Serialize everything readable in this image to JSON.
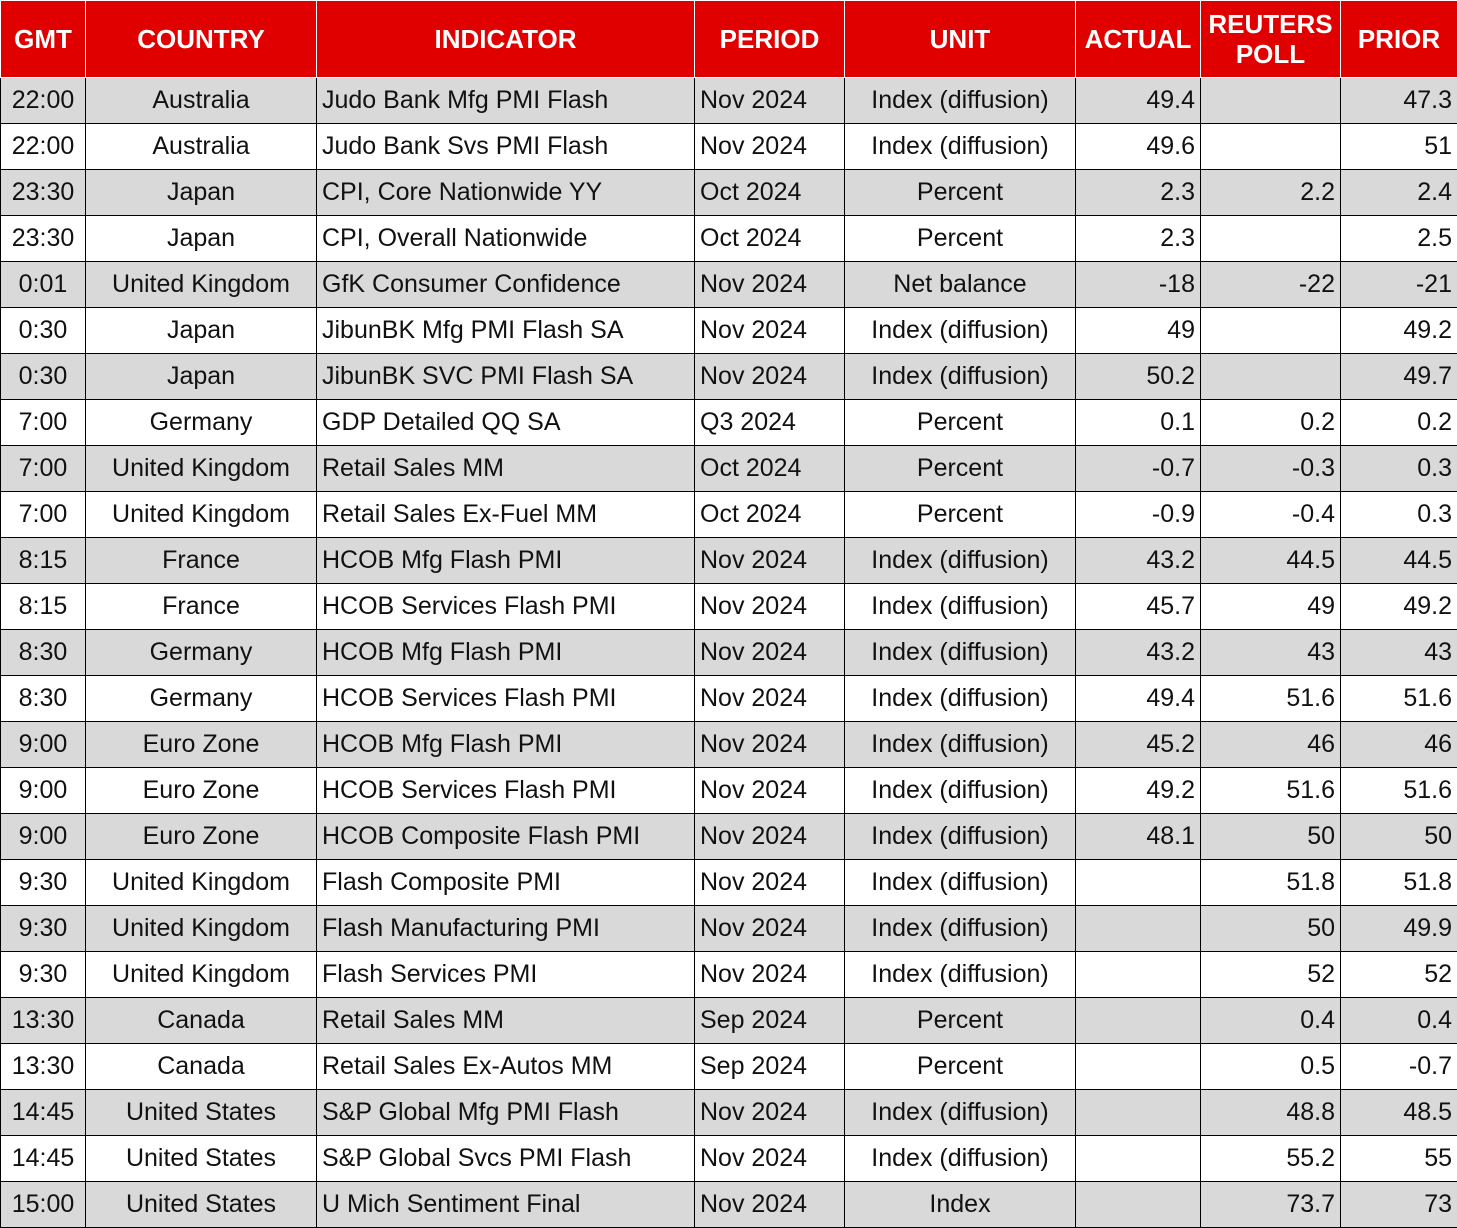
{
  "colors": {
    "header_bg": "#e00000",
    "header_text": "#ffffff",
    "row_alt": "#d9d9d9",
    "row": "#ffffff"
  },
  "headers": {
    "gmt": "GMT",
    "country": "COUNTRY",
    "indicator": "INDICATOR",
    "period": "PERIOD",
    "unit": "UNIT",
    "actual": "ACTUAL",
    "poll": "REUTERS POLL",
    "prior": "PRIOR"
  },
  "rows": [
    [
      "22:00",
      "Australia",
      "Judo Bank Mfg PMI Flash",
      "Nov 2024",
      "Index (diffusion)",
      "49.4",
      "",
      "47.3"
    ],
    [
      "22:00",
      "Australia",
      "Judo Bank Svs PMI Flash",
      "Nov 2024",
      "Index (diffusion)",
      "49.6",
      "",
      "51"
    ],
    [
      "23:30",
      "Japan",
      "CPI, Core Nationwide YY",
      "Oct 2024",
      "Percent",
      "2.3",
      "2.2",
      "2.4"
    ],
    [
      "23:30",
      "Japan",
      "CPI, Overall Nationwide",
      "Oct 2024",
      "Percent",
      "2.3",
      "",
      "2.5"
    ],
    [
      "0:01",
      "United Kingdom",
      "GfK Consumer Confidence",
      "Nov 2024",
      "Net balance",
      "-18",
      "-22",
      "-21"
    ],
    [
      "0:30",
      "Japan",
      "JibunBK Mfg PMI Flash SA",
      "Nov 2024",
      "Index (diffusion)",
      "49",
      "",
      "49.2"
    ],
    [
      "0:30",
      "Japan",
      "JibunBK SVC PMI Flash SA",
      "Nov 2024",
      "Index (diffusion)",
      "50.2",
      "",
      "49.7"
    ],
    [
      "7:00",
      "Germany",
      "GDP Detailed QQ SA",
      "Q3 2024",
      "Percent",
      "0.1",
      "0.2",
      "0.2"
    ],
    [
      "7:00",
      "United Kingdom",
      "Retail Sales MM",
      "Oct 2024",
      "Percent",
      "-0.7",
      "-0.3",
      "0.3"
    ],
    [
      "7:00",
      "United Kingdom",
      "Retail Sales Ex-Fuel MM",
      "Oct 2024",
      "Percent",
      "-0.9",
      "-0.4",
      "0.3"
    ],
    [
      "8:15",
      "France",
      "HCOB Mfg Flash PMI",
      "Nov 2024",
      "Index (diffusion)",
      "43.2",
      "44.5",
      "44.5"
    ],
    [
      "8:15",
      "France",
      "HCOB Services Flash PMI",
      "Nov 2024",
      "Index (diffusion)",
      "45.7",
      "49",
      "49.2"
    ],
    [
      "8:30",
      "Germany",
      "HCOB Mfg Flash PMI",
      "Nov 2024",
      "Index (diffusion)",
      "43.2",
      "43",
      "43"
    ],
    [
      "8:30",
      "Germany",
      "HCOB Services Flash PMI",
      "Nov 2024",
      "Index (diffusion)",
      "49.4",
      "51.6",
      "51.6"
    ],
    [
      "9:00",
      "Euro Zone",
      "HCOB Mfg Flash PMI",
      "Nov 2024",
      "Index (diffusion)",
      "45.2",
      "46",
      "46"
    ],
    [
      "9:00",
      "Euro Zone",
      "HCOB Services Flash PMI",
      "Nov 2024",
      "Index (diffusion)",
      "49.2",
      "51.6",
      "51.6"
    ],
    [
      "9:00",
      "Euro Zone",
      "HCOB Composite Flash PMI",
      "Nov 2024",
      "Index (diffusion)",
      "48.1",
      "50",
      "50"
    ],
    [
      "9:30",
      "United Kingdom",
      "Flash Composite PMI",
      "Nov 2024",
      "Index (diffusion)",
      "",
      "51.8",
      "51.8"
    ],
    [
      "9:30",
      "United Kingdom",
      "Flash Manufacturing PMI",
      "Nov 2024",
      "Index (diffusion)",
      "",
      "50",
      "49.9"
    ],
    [
      "9:30",
      "United Kingdom",
      "Flash Services PMI",
      "Nov 2024",
      "Index (diffusion)",
      "",
      "52",
      "52"
    ],
    [
      "13:30",
      "Canada",
      "Retail Sales MM",
      "Sep 2024",
      "Percent",
      "",
      "0.4",
      "0.4"
    ],
    [
      "13:30",
      "Canada",
      "Retail Sales Ex-Autos MM",
      "Sep 2024",
      "Percent",
      "",
      "0.5",
      "-0.7"
    ],
    [
      "14:45",
      "United States",
      "S&P Global Mfg PMI Flash",
      "Nov 2024",
      "Index (diffusion)",
      "",
      "48.8",
      "48.5"
    ],
    [
      "14:45",
      "United States",
      "S&P Global Svcs PMI Flash",
      "Nov 2024",
      "Index (diffusion)",
      "",
      "55.2",
      "55"
    ],
    [
      "15:00",
      "United States",
      "U Mich Sentiment Final",
      "Nov 2024",
      "Index",
      "",
      "73.7",
      "73"
    ]
  ]
}
